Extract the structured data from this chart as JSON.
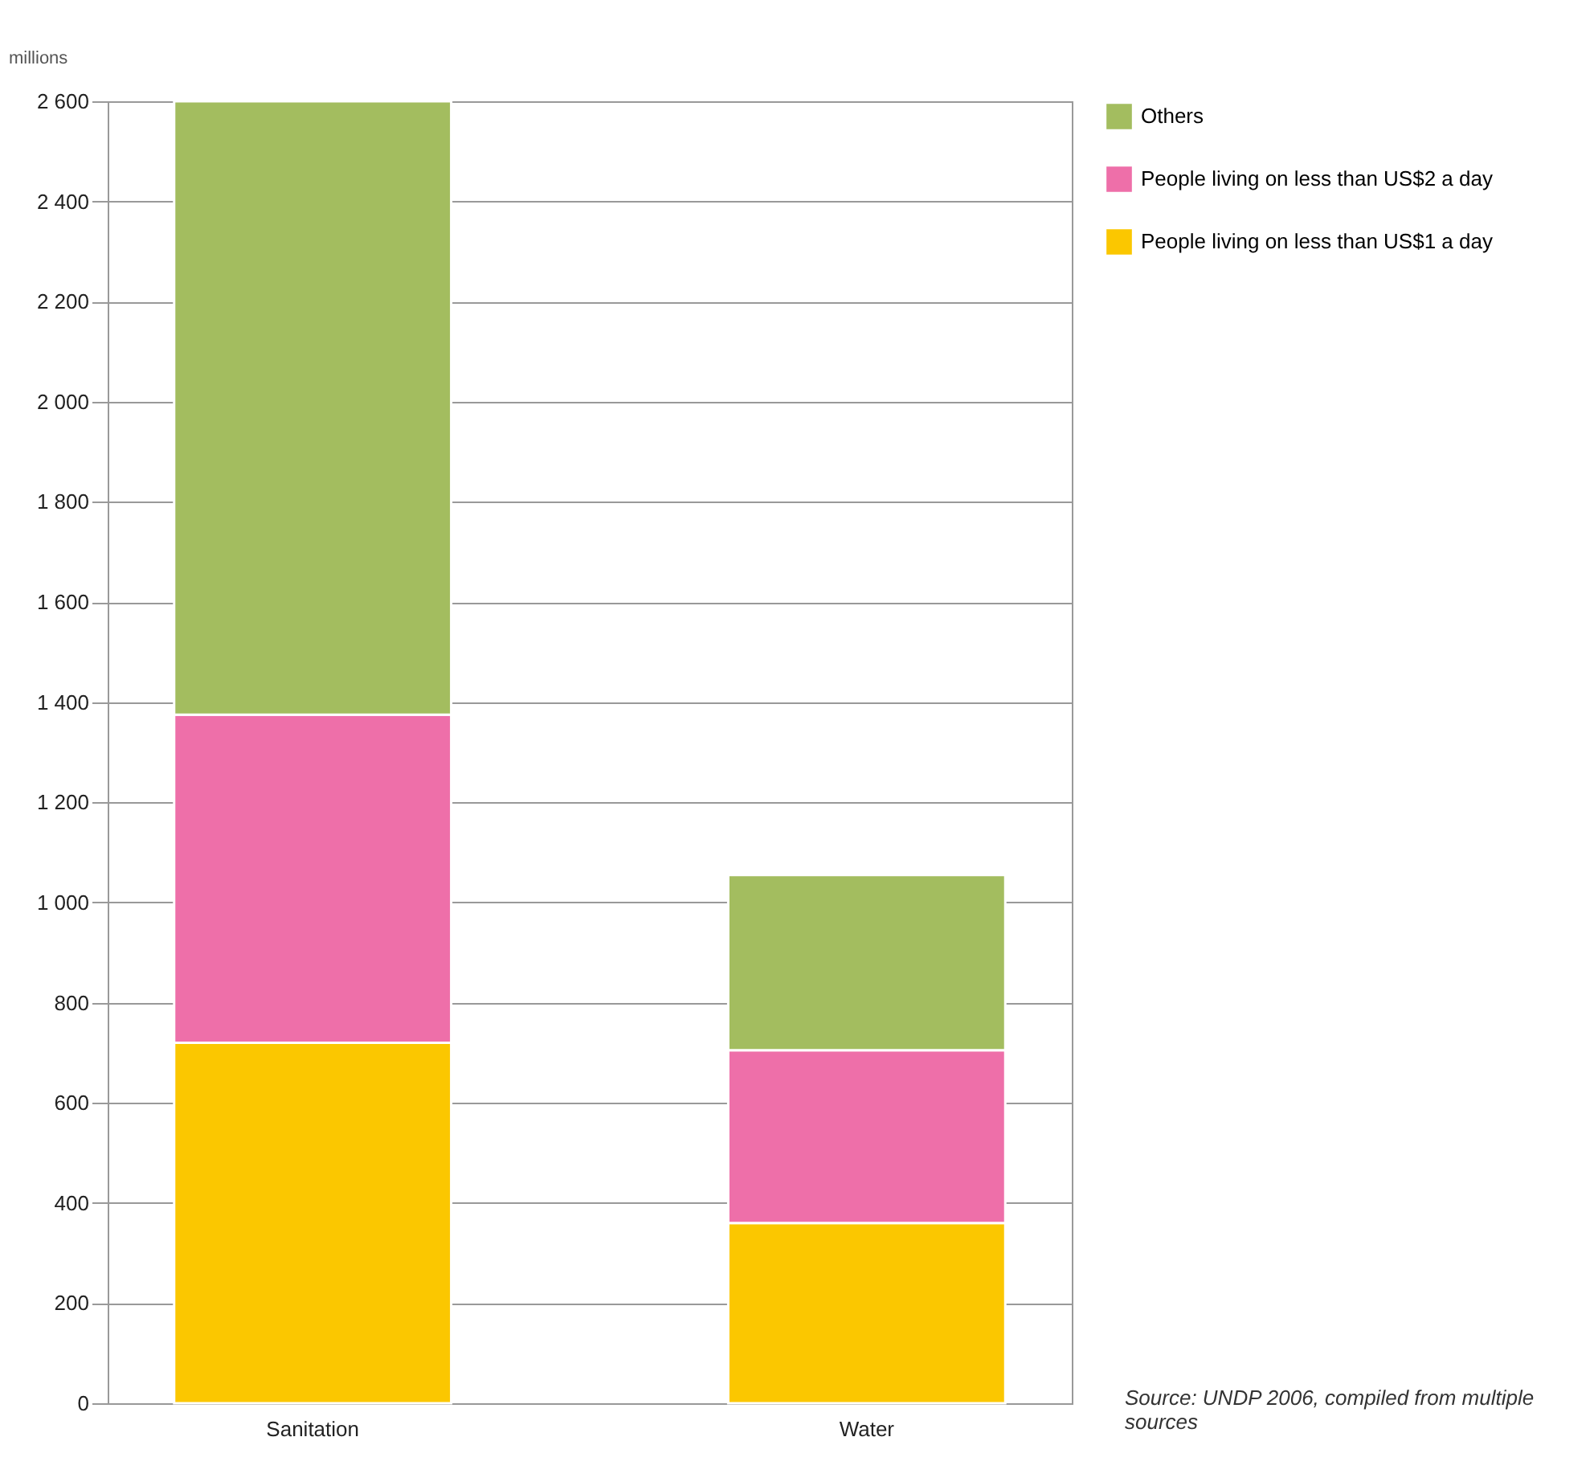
{
  "chart_data": {
    "type": "bar",
    "stacked": true,
    "ylabel": "millions",
    "categories": [
      "Sanitation",
      "Water"
    ],
    "series": [
      {
        "name": "People living on less than US$1 a day",
        "color": "#fbc700",
        "values": [
          720,
          360
        ]
      },
      {
        "name": "People living on less than US$2 a day",
        "color": "#ee6fa9",
        "values": [
          655,
          345
        ]
      },
      {
        "name": "Others",
        "color": "#a3bd5f",
        "values": [
          1225,
          350
        ]
      }
    ],
    "ylim": [
      0,
      2600
    ],
    "yticks": [
      0,
      200,
      400,
      600,
      800,
      {
        "value": 1000,
        "label": "1 000"
      },
      {
        "value": 1200,
        "label": "1 200"
      },
      {
        "value": 1400,
        "label": "1 400"
      },
      {
        "value": 1600,
        "label": "1 600"
      },
      {
        "value": 1800,
        "label": "1 800"
      },
      {
        "value": 2000,
        "label": "2 000"
      },
      {
        "value": 2200,
        "label": "2 200"
      },
      {
        "value": 2400,
        "label": "2 400"
      },
      {
        "value": 2600,
        "label": "2 600"
      }
    ],
    "grid": "y",
    "legend": "top right",
    "annotations": [
      "Source: UNDP 2006, compiled from multiple sources"
    ]
  }
}
